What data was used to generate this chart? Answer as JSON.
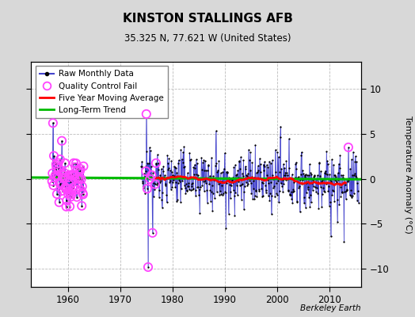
{
  "title": "KINSTON STALLINGS AFB",
  "subtitle": "35.325 N, 77.621 W (United States)",
  "ylabel": "Temperature Anomaly (°C)",
  "attribution": "Berkeley Earth",
  "xlim": [
    1953,
    2016
  ],
  "ylim": [
    -12,
    13
  ],
  "yticks": [
    -10,
    -5,
    0,
    5,
    10
  ],
  "xticks": [
    1960,
    1970,
    1980,
    1990,
    2000,
    2010
  ],
  "bg_color": "#d8d8d8",
  "plot_bg_color": "#ffffff",
  "raw_color": "#4444cc",
  "trend_color": "#00bb00",
  "ma_color": "#ff0000",
  "qc_color": "#ff44ff",
  "seed": 12345,
  "early_start": 1957.0,
  "early_end": 1963.0,
  "main_start": 1974.0,
  "main_end": 2015.5
}
